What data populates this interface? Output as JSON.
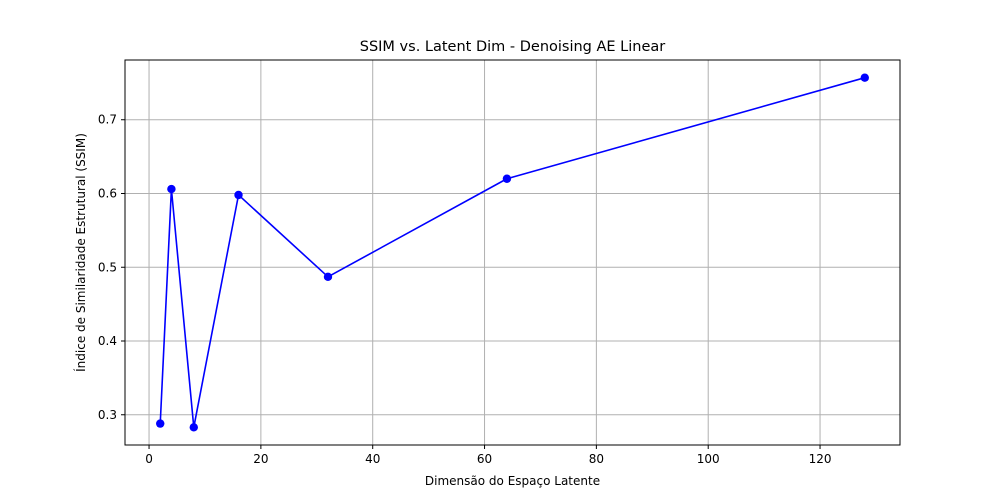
{
  "chart_data": {
    "type": "line",
    "title": "SSIM vs. Latent Dim - Denoising AE Linear",
    "xlabel": "Dimensão do Espaço Latente",
    "ylabel": "Índice de Similaridade Estrutural (SSIM)",
    "xlim": [
      -4.3,
      134.3
    ],
    "ylim": [
      0.259,
      0.781
    ],
    "xticks": [
      0,
      20,
      40,
      60,
      80,
      100,
      120
    ],
    "yticks": [
      0.3,
      0.4,
      0.5,
      0.6,
      0.7
    ],
    "grid": true,
    "legend": "none",
    "series": [
      {
        "color": "#0000ff",
        "marker": "circle",
        "x": [
          2,
          4,
          8,
          16,
          32,
          64,
          128
        ],
        "y": [
          0.288,
          0.606,
          0.283,
          0.598,
          0.487,
          0.62,
          0.757
        ]
      }
    ]
  }
}
